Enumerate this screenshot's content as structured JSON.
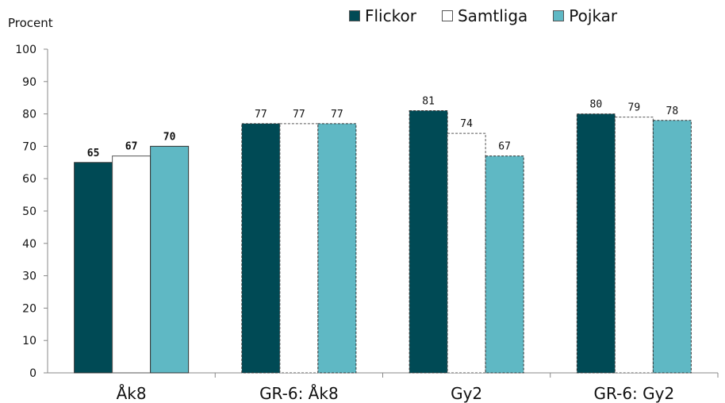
{
  "chart_data": {
    "type": "bar",
    "ylabel": "Procent",
    "ylim": [
      0,
      100
    ],
    "yticks": [
      0,
      10,
      20,
      30,
      40,
      50,
      60,
      70,
      80,
      90,
      100
    ],
    "categories": [
      "Åk8",
      "GR-6: Åk8",
      "Gy2",
      "GR-6: Gy2"
    ],
    "series": [
      {
        "name": "Flickor",
        "color": "#004a55",
        "values": [
          65,
          77,
          81,
          80
        ]
      },
      {
        "name": "Samtliga",
        "color": "#ffffff",
        "values": [
          67,
          77,
          74,
          79
        ]
      },
      {
        "name": "Pojkar",
        "color": "#5fb8c4",
        "values": [
          70,
          77,
          67,
          78
        ]
      }
    ],
    "legend_position": "top-right",
    "grid": false
  }
}
